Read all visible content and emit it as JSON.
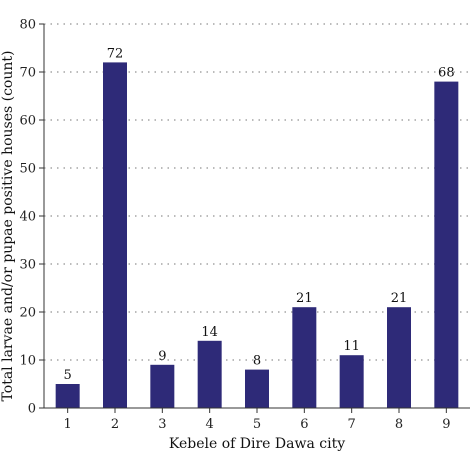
{
  "chart_data": {
    "type": "bar",
    "categories": [
      "1",
      "2",
      "3",
      "4",
      "5",
      "6",
      "7",
      "8",
      "9"
    ],
    "values": [
      5,
      72,
      9,
      14,
      8,
      21,
      11,
      21,
      68
    ],
    "data_labels": [
      "5",
      "72",
      "9",
      "14",
      "8",
      "21",
      "11",
      "21",
      "68"
    ],
    "xlabel": "Kebele of Dire Dawa city",
    "ylabel": "Total larvae and/or pupae positive houses (count)",
    "ylim": [
      0,
      80
    ],
    "yticks": [
      "0",
      "10",
      "20",
      "30",
      "40",
      "50",
      "60",
      "70",
      "80"
    ],
    "grid": "horizontal dotted",
    "bar_color": "#2e2a78"
  }
}
